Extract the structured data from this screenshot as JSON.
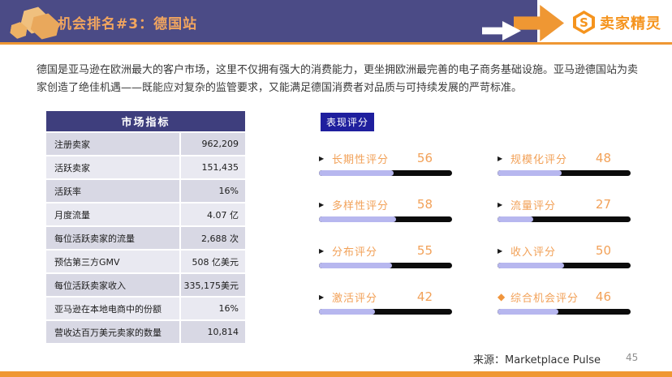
{
  "header": {
    "title": "机会排名#3：德国站",
    "logo_text": "卖家精灵",
    "logo_letter": "S"
  },
  "intro": "德国是亚马逊在欧洲最大的客户市场，这里不仅拥有强大的消费能力，更坐拥欧洲最完善的电子商务基础设施。亚马逊德国站为卖家创造了绝佳机遇——既能应对复杂的监管要求，又能满足德国消费者对品质与可持续发展的严苛标准。",
  "table": {
    "header": "市场指标",
    "rows": [
      {
        "label": "注册卖家",
        "value": "962,209"
      },
      {
        "label": "活跃卖家",
        "value": "151,435"
      },
      {
        "label": "活跃率",
        "value": "16%"
      },
      {
        "label": "月度流量",
        "value": "4.07 亿"
      },
      {
        "label": "每位活跃卖家的流量",
        "value": "2,688 次"
      },
      {
        "label": "预估第三方GMV",
        "value": "508 亿美元"
      },
      {
        "label": "每位活跃卖家收入",
        "value": "335,175美元"
      },
      {
        "label": "亚马逊在本地电商中的份额",
        "value": "16%"
      },
      {
        "label": "营收达百万美元卖家的数量",
        "value": "10,814"
      }
    ]
  },
  "scores": {
    "section_label": "表现评分",
    "max": 100,
    "items": [
      {
        "label": "长期性评分",
        "value": 56,
        "bullet": "▶"
      },
      {
        "label": "规模化评分",
        "value": 48,
        "bullet": "▶"
      },
      {
        "label": "多样性评分",
        "value": 58,
        "bullet": "▶"
      },
      {
        "label": "流量评分",
        "value": 27,
        "bullet": "▶"
      },
      {
        "label": "分布评分",
        "value": 55,
        "bullet": "▶"
      },
      {
        "label": "收入评分",
        "value": 50,
        "bullet": "▶"
      },
      {
        "label": "激活评分",
        "value": 42,
        "bullet": "▶"
      },
      {
        "label": "综合机会评分",
        "value": 46,
        "bullet": "◆"
      }
    ]
  },
  "footer": {
    "source": "来源：Marketplace Pulse",
    "page_number": "45"
  },
  "colors": {
    "header_purple": "#4b4b86",
    "accent_orange": "#ef9733",
    "title_orange": "#f1a55f",
    "logo_orange": "#f5941e",
    "table_header_bg": "#3e3e7d",
    "row_dark": "#d8d8e4",
    "row_light": "#e9e9f1",
    "badge_navy": "#1f1f9e",
    "bar_fill": "#b7b7ef",
    "bar_track": "#0c0c0c",
    "score_orange": "#f2a158"
  }
}
